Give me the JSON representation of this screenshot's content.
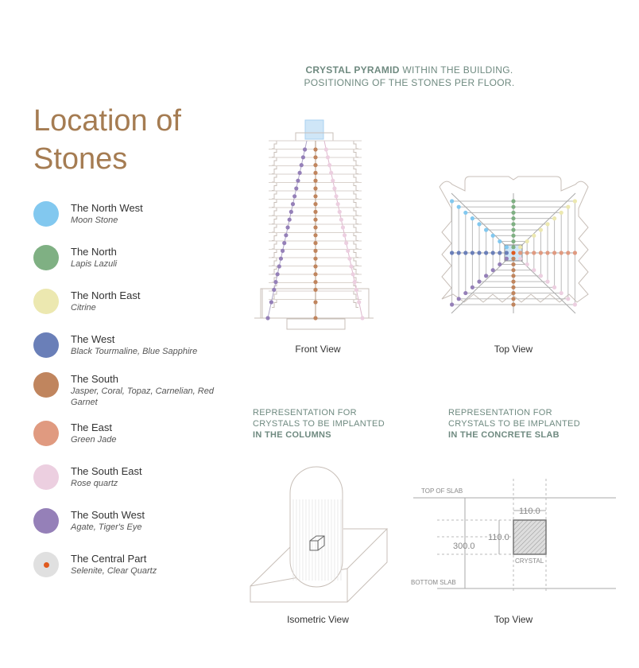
{
  "title": "Location of Stones",
  "header": {
    "bold": "CRYSTAL PYRAMID",
    "line1_rest": " WITHIN THE BUILDING.",
    "line2": "POSITIONING OF THE STONES PER FLOOR."
  },
  "legend": [
    {
      "name": "The North West",
      "stones": "Moon Stone",
      "color": "#82c8ef"
    },
    {
      "name": "The North",
      "stones": "Lapis Lazuli",
      "color": "#7fb083"
    },
    {
      "name": "The North East",
      "stones": "Citrine",
      "color": "#ece8b0"
    },
    {
      "name": "The West",
      "stones": "Black Tourmaline, Blue Sapphire",
      "color": "#6a7fb8"
    },
    {
      "name": "The South",
      "stones": "Jasper, Coral, Topaz, Carnelian, Red Garnet",
      "color": "#c0855e"
    },
    {
      "name": "The East",
      "stones": "Green Jade",
      "color": "#e09a80"
    },
    {
      "name": "The South East",
      "stones": "Rose quartz",
      "color": "#eccfe0"
    },
    {
      "name": "The South West",
      "stones": "Agate, Tiger's Eye",
      "color": "#9580b8"
    },
    {
      "name": "The Central Part",
      "stones": "Selenite, Clear Quartz",
      "color": "#e0e0e0",
      "marker": "#e05a1e"
    }
  ],
  "captions": {
    "front": "Front View",
    "top": "Top View",
    "iso": "Isometric View",
    "slab_top": "Top View"
  },
  "columns_rep": {
    "line1": "REPRESENTATION FOR",
    "line2": "CRYSTALS TO BE IMPLANTED",
    "line3": "IN THE COLUMNS"
  },
  "slab_rep": {
    "line1": "REPRESENTATION FOR",
    "line2": "CRYSTALS TO BE IMPLANTED",
    "line3": "IN THE CONCRETE SLAB"
  },
  "slab_labels": {
    "top": "TOP OF SLAB",
    "bottom": "BOTTOM SLAB",
    "thickness": "300.0",
    "width": "110.0",
    "height": "110.0",
    "crystal": "CRYSTAL"
  }
}
